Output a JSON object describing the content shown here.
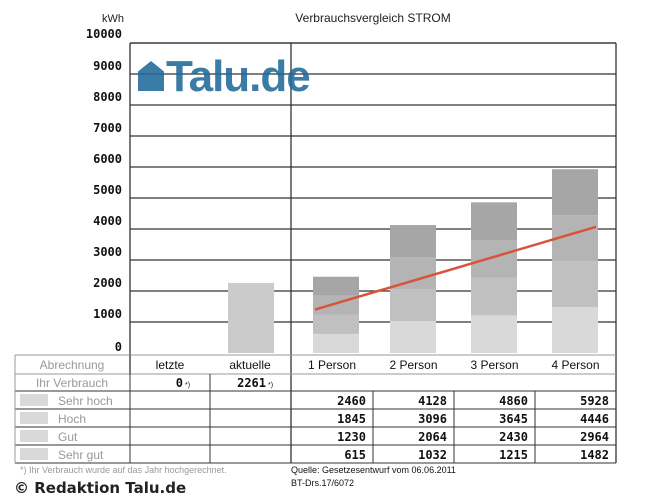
{
  "chart_data": {
    "type": "bar",
    "title": "Verbrauchsvergleich STROM",
    "ylabel": "kWh",
    "ylim": [
      0,
      10000
    ],
    "yticks": [
      0,
      1000,
      2000,
      3000,
      4000,
      5000,
      6000,
      7000,
      8000,
      9000,
      10000
    ],
    "categories": [
      "1 Person",
      "2 Person",
      "3 Person",
      "4 Person"
    ],
    "series": [
      {
        "name": "Sehr hoch",
        "values": [
          2460,
          4128,
          4860,
          5928
        ],
        "color": "#a6a6a6"
      },
      {
        "name": "Hoch",
        "values": [
          1845,
          3096,
          3645,
          4446
        ],
        "color": "#b4b4b4"
      },
      {
        "name": "Gut",
        "values": [
          1230,
          2064,
          2430,
          2964
        ],
        "color": "#c0c0c0"
      },
      {
        "name": "Sehr gut",
        "values": [
          615,
          1032,
          1215,
          1482
        ],
        "color": "#d9d9d9"
      }
    ],
    "trend_line": {
      "color": "#d9533a",
      "start": 1400,
      "end": 4070
    },
    "abrechnung": {
      "label": "Abrechnung",
      "columns": [
        "letzte",
        "aktuelle"
      ]
    },
    "ihr_verbrauch": {
      "label": "Ihr Verbrauch",
      "values": [
        "0",
        "2261"
      ],
      "note_mark": "*)",
      "bar_value": 2261,
      "bar_color": "#cbcbcb"
    },
    "row_labels": [
      "Sehr hoch",
      "Hoch",
      "Gut",
      "Sehr gut"
    ],
    "footnote": "*) Ihr Verbrauch wurde auf das Jahr hochgerechnet.",
    "source_line1": "Quelle: Gesetzesentwurf vom 06.06.2011",
    "source_line2": "BT-Drs.17/6072"
  },
  "watermark": {
    "logo": "Talu.de",
    "copyright": "© Redaktion Talu.de"
  }
}
